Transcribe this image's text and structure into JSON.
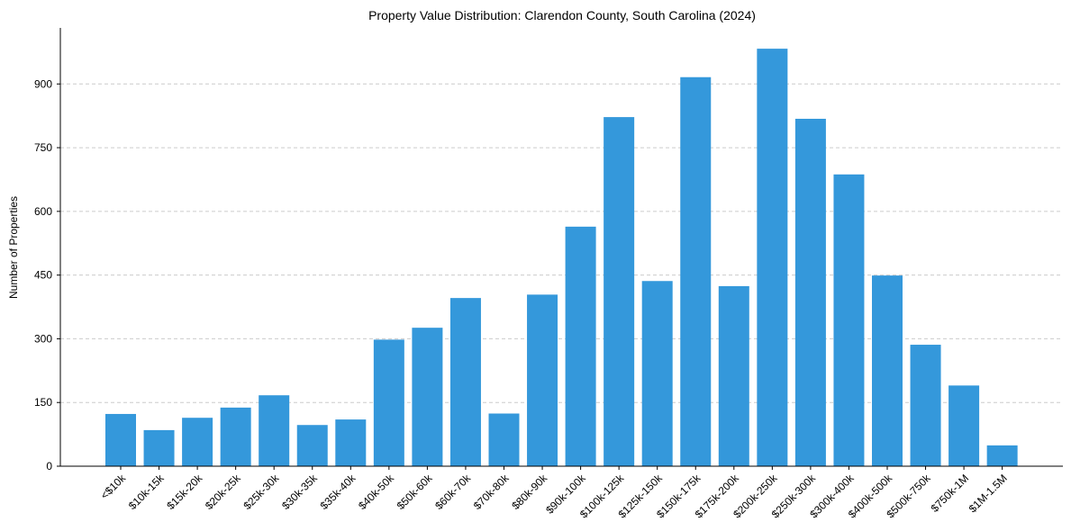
{
  "chart_data": {
    "type": "bar",
    "title": "Property Value Distribution: Clarendon County, South Carolina (2024)",
    "xlabel": "",
    "ylabel": "Number of Properties",
    "categories": [
      "<$10k",
      "$10k-15k",
      "$15k-20k",
      "$20k-25k",
      "$25k-30k",
      "$30k-35k",
      "$35k-40k",
      "$40k-50k",
      "$50k-60k",
      "$60k-70k",
      "$70k-80k",
      "$80k-90k",
      "$90k-100k",
      "$100k-125k",
      "$125k-150k",
      "$150k-175k",
      "$175k-200k",
      "$200k-250k",
      "$250k-300k",
      "$300k-400k",
      "$400k-500k",
      "$500k-750k",
      "$750k-1M",
      "$1M-1.5M"
    ],
    "values": [
      123,
      85,
      114,
      138,
      167,
      97,
      110,
      298,
      326,
      396,
      124,
      404,
      564,
      822,
      436,
      916,
      424,
      983,
      818,
      687,
      449,
      286,
      190,
      49
    ],
    "yticks": [
      0,
      150,
      300,
      450,
      600,
      750,
      900
    ],
    "ylim": [
      0,
      1032
    ],
    "grid": "y-dashed",
    "bar_color": "#3498db",
    "grid_color": "#cccccc"
  }
}
